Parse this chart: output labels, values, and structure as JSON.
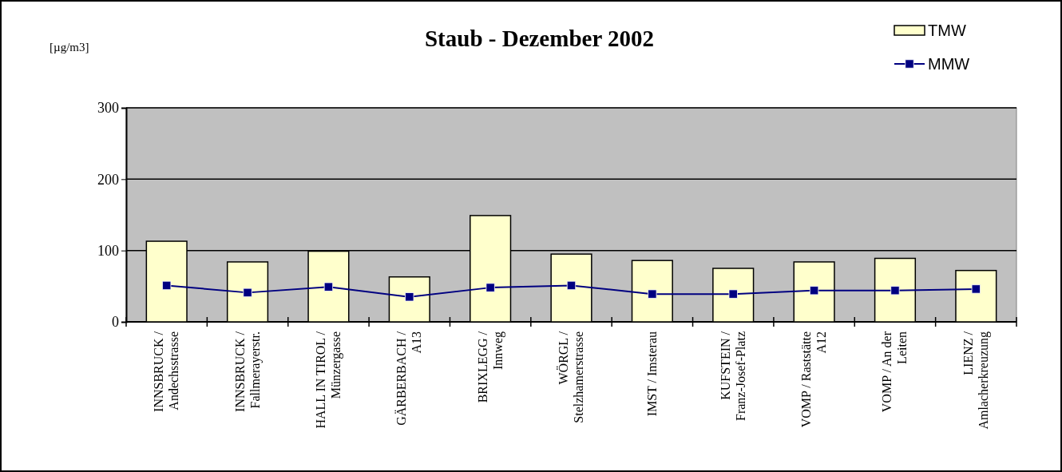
{
  "chart_data": {
    "type": "bar",
    "title": "Staub - Dezember 2002",
    "ylabel": "[µg/m3]",
    "categories": [
      "INNSBRUCK /\nAndechsstrasse",
      "INNSBRUCK /\nFallmerayerstr.",
      "HALL IN TIROL /\nMünzergasse",
      "GÄRBERBACH /\nA13",
      "BRIXLEGG /\nInnweg",
      "WÖRGL /\nStelzhamerstrasse",
      "IMST / Imsterau",
      "KUFSTEIN /\nFranz-Josef-Platz",
      "VOMP / Raststätte\nA12",
      "VOMP / An der\nLeiten",
      "LIENZ /\nAmlacherkreuzung"
    ],
    "series": [
      {
        "name": "TMW",
        "color": "#ffffcc",
        "values": [
          113,
          84,
          99,
          63,
          149,
          95,
          86,
          75,
          84,
          89,
          72
        ]
      },
      {
        "name": "MMW",
        "type": "line",
        "color": "#000080",
        "values": [
          51,
          41,
          49,
          35,
          48,
          51,
          39,
          39,
          44,
          44,
          46
        ]
      }
    ],
    "ylim": [
      0,
      300
    ],
    "yticks": [
      0,
      100,
      200,
      300
    ],
    "grid": "y",
    "legend": "top right",
    "marker": "square",
    "line_style": "solid"
  }
}
